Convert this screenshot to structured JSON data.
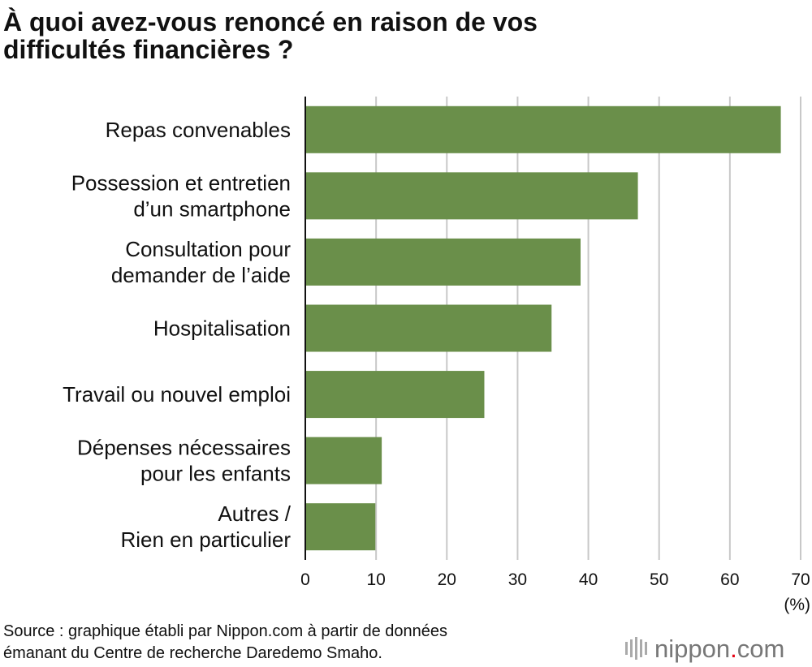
{
  "chart_data": {
    "type": "bar",
    "orientation": "horizontal",
    "title": "À quoi avez-vous renoncé en raison de vos\ndifficultés financières ?",
    "categories": [
      "Repas convenables",
      "Possession et entretien\nd’un smartphone",
      "Consultation pour\ndemander de l’aide",
      "Hospitalisation",
      "Travail ou nouvel emploi",
      "Dépenses nécessaires\npour les enfants",
      "Autres /\nRien en particulier"
    ],
    "values": [
      67.2,
      47.0,
      38.9,
      34.8,
      25.3,
      10.8,
      9.9
    ],
    "color": "#6a8f4a",
    "xlim": [
      0,
      70
    ],
    "xticks": [
      0,
      10,
      20,
      30,
      40,
      50,
      60,
      70
    ],
    "x_unit": "(%)",
    "grid": true,
    "source": "Source : graphique établi par Nippon.com à partir de données\némanant du Centre de recherche Daredemo Smaho.",
    "logo": [
      "nippon",
      ".",
      "com"
    ]
  }
}
